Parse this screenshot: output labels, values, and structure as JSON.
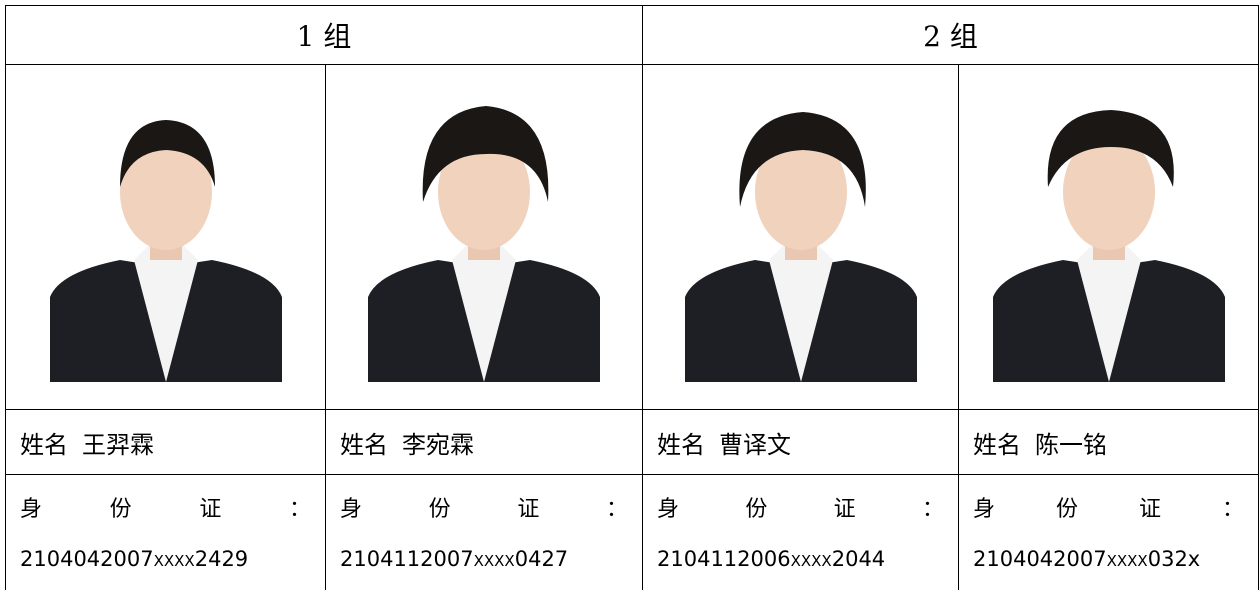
{
  "groups": [
    "1 组",
    "2 组"
  ],
  "name_label": "姓名",
  "id_label_chars": [
    "身",
    "份",
    "证",
    "："
  ],
  "members": [
    {
      "name": "王羿霖",
      "id_prefix": "2104042007",
      "id_mask": "XXXX",
      "id_suffix": "2429"
    },
    {
      "name": "李宛霖",
      "id_prefix": "2104112007",
      "id_mask": "XXXX",
      "id_suffix": "0427"
    },
    {
      "name": "曹译文",
      "id_prefix": "2104112006",
      "id_mask": "XXXX",
      "id_suffix": "2044"
    },
    {
      "name": "陈一铭",
      "id_prefix": "2104042007",
      "id_mask": "XXXX",
      "id_suffix": "032x"
    }
  ]
}
